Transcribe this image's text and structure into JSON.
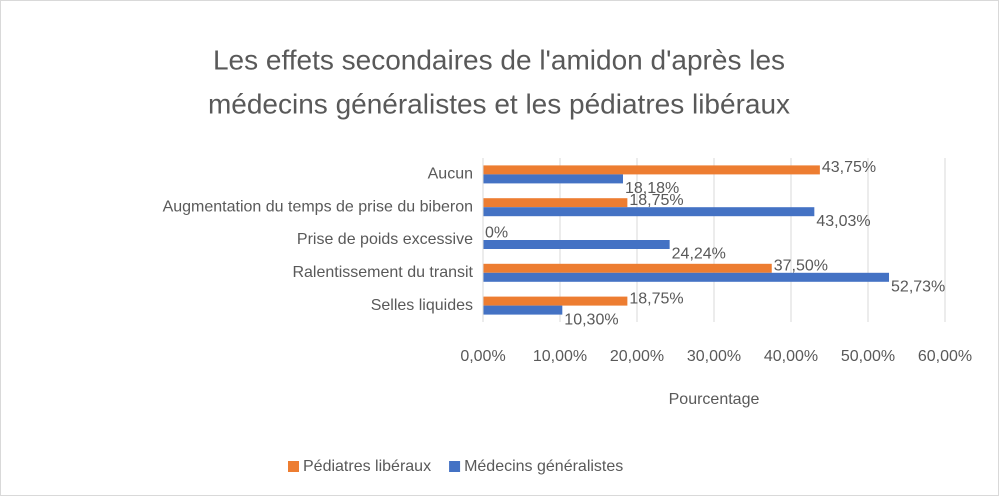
{
  "chart_data": {
    "type": "hbar",
    "title": [
      "Les effets secondaires de l'amidon d'après les",
      "médecins généralistes et les pédiatres libéraux"
    ],
    "x_label": "Pourcentage",
    "categories": [
      "Aucun",
      "Augmentation du temps de prise du biberon",
      "Prise de poids excessive",
      "Ralentissement du transit",
      "Selles liquides"
    ],
    "series": [
      {
        "name": "Pédiatres libéraux",
        "color": "#ed7d31",
        "values": [
          43.75,
          18.75,
          0,
          37.5,
          18.75
        ],
        "value_labels": [
          "43,75%",
          "18,75%",
          "0%",
          "37,50%",
          "18,75%"
        ]
      },
      {
        "name": "Médecins généralistes",
        "color": "#4472c4",
        "values": [
          18.18,
          43.03,
          24.24,
          52.73,
          10.3
        ],
        "value_labels": [
          "18,18%",
          "43,03%",
          "24,24%",
          "52,73%",
          "10,30%"
        ]
      }
    ],
    "xlim": [
      0,
      60
    ],
    "xticks": [
      {
        "value": 0,
        "label": "0,00%"
      },
      {
        "value": 10,
        "label": "10,00%"
      },
      {
        "value": 20,
        "label": "20,00%"
      },
      {
        "value": 30,
        "label": "30,00%"
      },
      {
        "value": 40,
        "label": "40,00%"
      },
      {
        "value": 50,
        "label": "50,00%"
      },
      {
        "value": 60,
        "label": "60,00%"
      }
    ],
    "grid": true,
    "legend": "bottom"
  }
}
